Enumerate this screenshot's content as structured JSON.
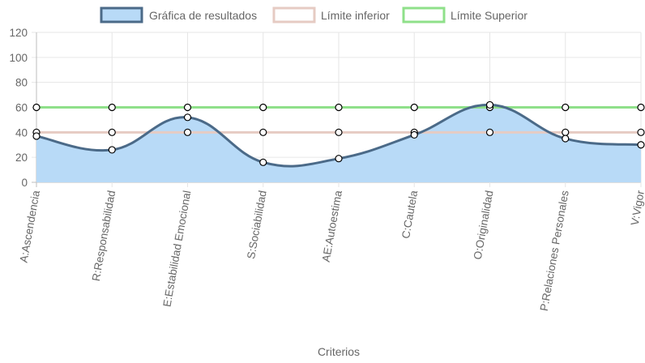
{
  "chart_data": {
    "type": "line",
    "categories": [
      "A:Ascendencia",
      "R:Responsabilidad",
      "E:Estabilidad Emocional",
      "S:Sociabilidad",
      "AE:Autoestima",
      "C:Cautela",
      "O:Originalidad",
      "P:Relaciones Personales",
      "V:Vigor"
    ],
    "series": [
      {
        "name": "Gráfica de resultados",
        "values": [
          37,
          26,
          52,
          16,
          19,
          38,
          62,
          35,
          30
        ],
        "line_color": "#4b6a88",
        "fill_color": "#b8daf7",
        "filled": true
      },
      {
        "name": "Límite inferior",
        "values": [
          40,
          40,
          40,
          40,
          40,
          40,
          40,
          40,
          40
        ],
        "line_color": "#e6cbc3",
        "filled": false
      },
      {
        "name": "Límite Superior",
        "values": [
          60,
          60,
          60,
          60,
          60,
          60,
          60,
          60,
          60
        ],
        "line_color": "#8fe08a",
        "filled": false
      }
    ],
    "ylim": [
      0,
      120
    ],
    "yticks": [
      0,
      20,
      40,
      60,
      80,
      100,
      120
    ],
    "xlabel": "Criterios",
    "ylabel": "",
    "grid": true,
    "legend_position": "top-center",
    "curve": "smooth"
  }
}
